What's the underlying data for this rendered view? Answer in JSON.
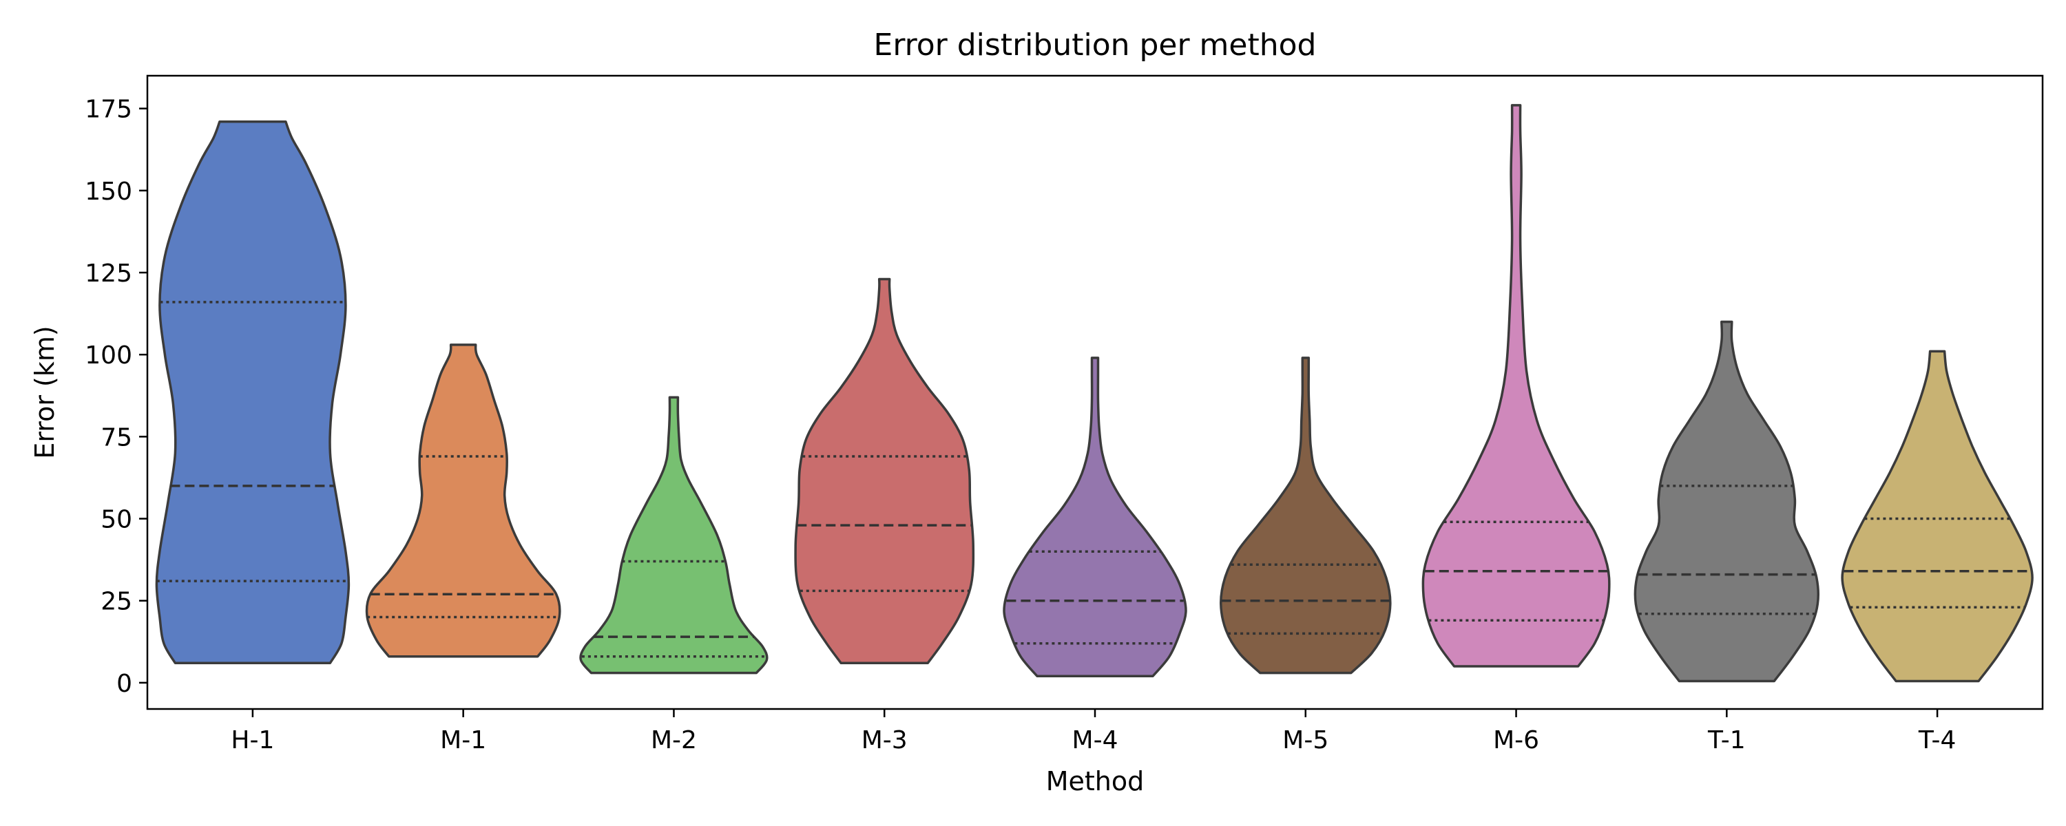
{
  "chart_data": {
    "type": "violin",
    "title": "Error distribution per method",
    "xlabel": "Method",
    "ylabel": "Error (km)",
    "ylim": [
      -8,
      185
    ],
    "yticks": [
      0,
      25,
      50,
      75,
      100,
      125,
      150,
      175
    ],
    "categories": [
      "H-1",
      "M-1",
      "M-2",
      "M-3",
      "M-4",
      "M-5",
      "M-6",
      "T-1",
      "T-4"
    ],
    "grid": false,
    "series": [
      {
        "category": "H-1",
        "color": "#5b7dc2",
        "min": 6,
        "max": 171,
        "q1": 31,
        "median": 60,
        "q3": 116,
        "profile": [
          [
            6,
            0.75
          ],
          [
            12,
            0.86
          ],
          [
            20,
            0.9
          ],
          [
            30,
            0.93
          ],
          [
            40,
            0.9
          ],
          [
            55,
            0.82
          ],
          [
            70,
            0.75
          ],
          [
            85,
            0.77
          ],
          [
            100,
            0.85
          ],
          [
            115,
            0.9
          ],
          [
            130,
            0.85
          ],
          [
            145,
            0.7
          ],
          [
            158,
            0.52
          ],
          [
            166,
            0.38
          ],
          [
            171,
            0.32
          ]
        ]
      },
      {
        "category": "M-1",
        "color": "#db8a5b",
        "min": 8,
        "max": 103,
        "q1": 20,
        "median": 27,
        "q3": 69,
        "profile": [
          [
            8,
            0.72
          ],
          [
            13,
            0.84
          ],
          [
            20,
            0.93
          ],
          [
            27,
            0.9
          ],
          [
            34,
            0.72
          ],
          [
            42,
            0.55
          ],
          [
            50,
            0.44
          ],
          [
            57,
            0.4
          ],
          [
            64,
            0.42
          ],
          [
            70,
            0.42
          ],
          [
            78,
            0.38
          ],
          [
            86,
            0.3
          ],
          [
            94,
            0.22
          ],
          [
            100,
            0.13
          ],
          [
            103,
            0.12
          ]
        ]
      },
      {
        "category": "M-2",
        "color": "#77c071",
        "min": 3,
        "max": 87,
        "q1": 8,
        "median": 14,
        "q3": 37,
        "profile": [
          [
            3,
            0.8
          ],
          [
            7,
            0.9
          ],
          [
            11,
            0.86
          ],
          [
            16,
            0.72
          ],
          [
            22,
            0.6
          ],
          [
            30,
            0.54
          ],
          [
            37,
            0.5
          ],
          [
            45,
            0.42
          ],
          [
            55,
            0.26
          ],
          [
            62,
            0.14
          ],
          [
            68,
            0.07
          ],
          [
            75,
            0.05
          ],
          [
            82,
            0.04
          ],
          [
            87,
            0.04
          ]
        ]
      },
      {
        "category": "M-3",
        "color": "#c96d6d",
        "min": 6,
        "max": 123,
        "q1": 28,
        "median": 48,
        "q3": 69,
        "profile": [
          [
            6,
            0.42
          ],
          [
            12,
            0.56
          ],
          [
            20,
            0.72
          ],
          [
            30,
            0.84
          ],
          [
            42,
            0.86
          ],
          [
            55,
            0.83
          ],
          [
            65,
            0.82
          ],
          [
            74,
            0.76
          ],
          [
            82,
            0.62
          ],
          [
            90,
            0.42
          ],
          [
            98,
            0.25
          ],
          [
            106,
            0.12
          ],
          [
            113,
            0.07
          ],
          [
            120,
            0.05
          ],
          [
            123,
            0.05
          ]
        ]
      },
      {
        "category": "M-4",
        "color": "#9476ad",
        "min": 2,
        "max": 99,
        "q1": 12,
        "median": 25,
        "q3": 40,
        "profile": [
          [
            2,
            0.56
          ],
          [
            8,
            0.72
          ],
          [
            15,
            0.82
          ],
          [
            22,
            0.88
          ],
          [
            30,
            0.82
          ],
          [
            38,
            0.68
          ],
          [
            46,
            0.5
          ],
          [
            54,
            0.3
          ],
          [
            62,
            0.15
          ],
          [
            70,
            0.07
          ],
          [
            78,
            0.04
          ],
          [
            86,
            0.03
          ],
          [
            94,
            0.03
          ],
          [
            99,
            0.03
          ]
        ]
      },
      {
        "category": "M-5",
        "color": "#825f45",
        "min": 3,
        "max": 99,
        "q1": 15,
        "median": 25,
        "q3": 36,
        "profile": [
          [
            3,
            0.44
          ],
          [
            9,
            0.64
          ],
          [
            16,
            0.77
          ],
          [
            24,
            0.82
          ],
          [
            32,
            0.78
          ],
          [
            40,
            0.66
          ],
          [
            48,
            0.46
          ],
          [
            56,
            0.26
          ],
          [
            64,
            0.1
          ],
          [
            72,
            0.05
          ],
          [
            80,
            0.04
          ],
          [
            88,
            0.03
          ],
          [
            95,
            0.03
          ],
          [
            99,
            0.03
          ]
        ]
      },
      {
        "category": "M-6",
        "color": "#cf88bb",
        "min": 5,
        "max": 176,
        "q1": 19,
        "median": 34,
        "q3": 49,
        "profile": [
          [
            5,
            0.6
          ],
          [
            12,
            0.76
          ],
          [
            20,
            0.86
          ],
          [
            28,
            0.9
          ],
          [
            36,
            0.88
          ],
          [
            46,
            0.76
          ],
          [
            56,
            0.56
          ],
          [
            68,
            0.36
          ],
          [
            80,
            0.2
          ],
          [
            95,
            0.1
          ],
          [
            115,
            0.06
          ],
          [
            135,
            0.04
          ],
          [
            155,
            0.05
          ],
          [
            168,
            0.04
          ],
          [
            176,
            0.04
          ]
        ]
      },
      {
        "category": "T-1",
        "color": "#7b7b7b",
        "min": 0.5,
        "max": 110,
        "q1": 21,
        "median": 33,
        "q3": 60,
        "profile": [
          [
            0.5,
            0.46
          ],
          [
            8,
            0.64
          ],
          [
            16,
            0.8
          ],
          [
            24,
            0.88
          ],
          [
            32,
            0.87
          ],
          [
            40,
            0.78
          ],
          [
            48,
            0.66
          ],
          [
            56,
            0.66
          ],
          [
            64,
            0.62
          ],
          [
            72,
            0.52
          ],
          [
            80,
            0.36
          ],
          [
            88,
            0.2
          ],
          [
            96,
            0.1
          ],
          [
            104,
            0.05
          ],
          [
            110,
            0.05
          ]
        ]
      },
      {
        "category": "T-4",
        "color": "#c8b273",
        "min": 0.5,
        "max": 101,
        "q1": 23,
        "median": 34,
        "q3": 50,
        "profile": [
          [
            0.5,
            0.4
          ],
          [
            8,
            0.58
          ],
          [
            16,
            0.74
          ],
          [
            24,
            0.86
          ],
          [
            32,
            0.92
          ],
          [
            40,
            0.86
          ],
          [
            48,
            0.74
          ],
          [
            56,
            0.6
          ],
          [
            64,
            0.46
          ],
          [
            72,
            0.34
          ],
          [
            80,
            0.24
          ],
          [
            88,
            0.15
          ],
          [
            95,
            0.09
          ],
          [
            101,
            0.07
          ]
        ]
      }
    ]
  }
}
